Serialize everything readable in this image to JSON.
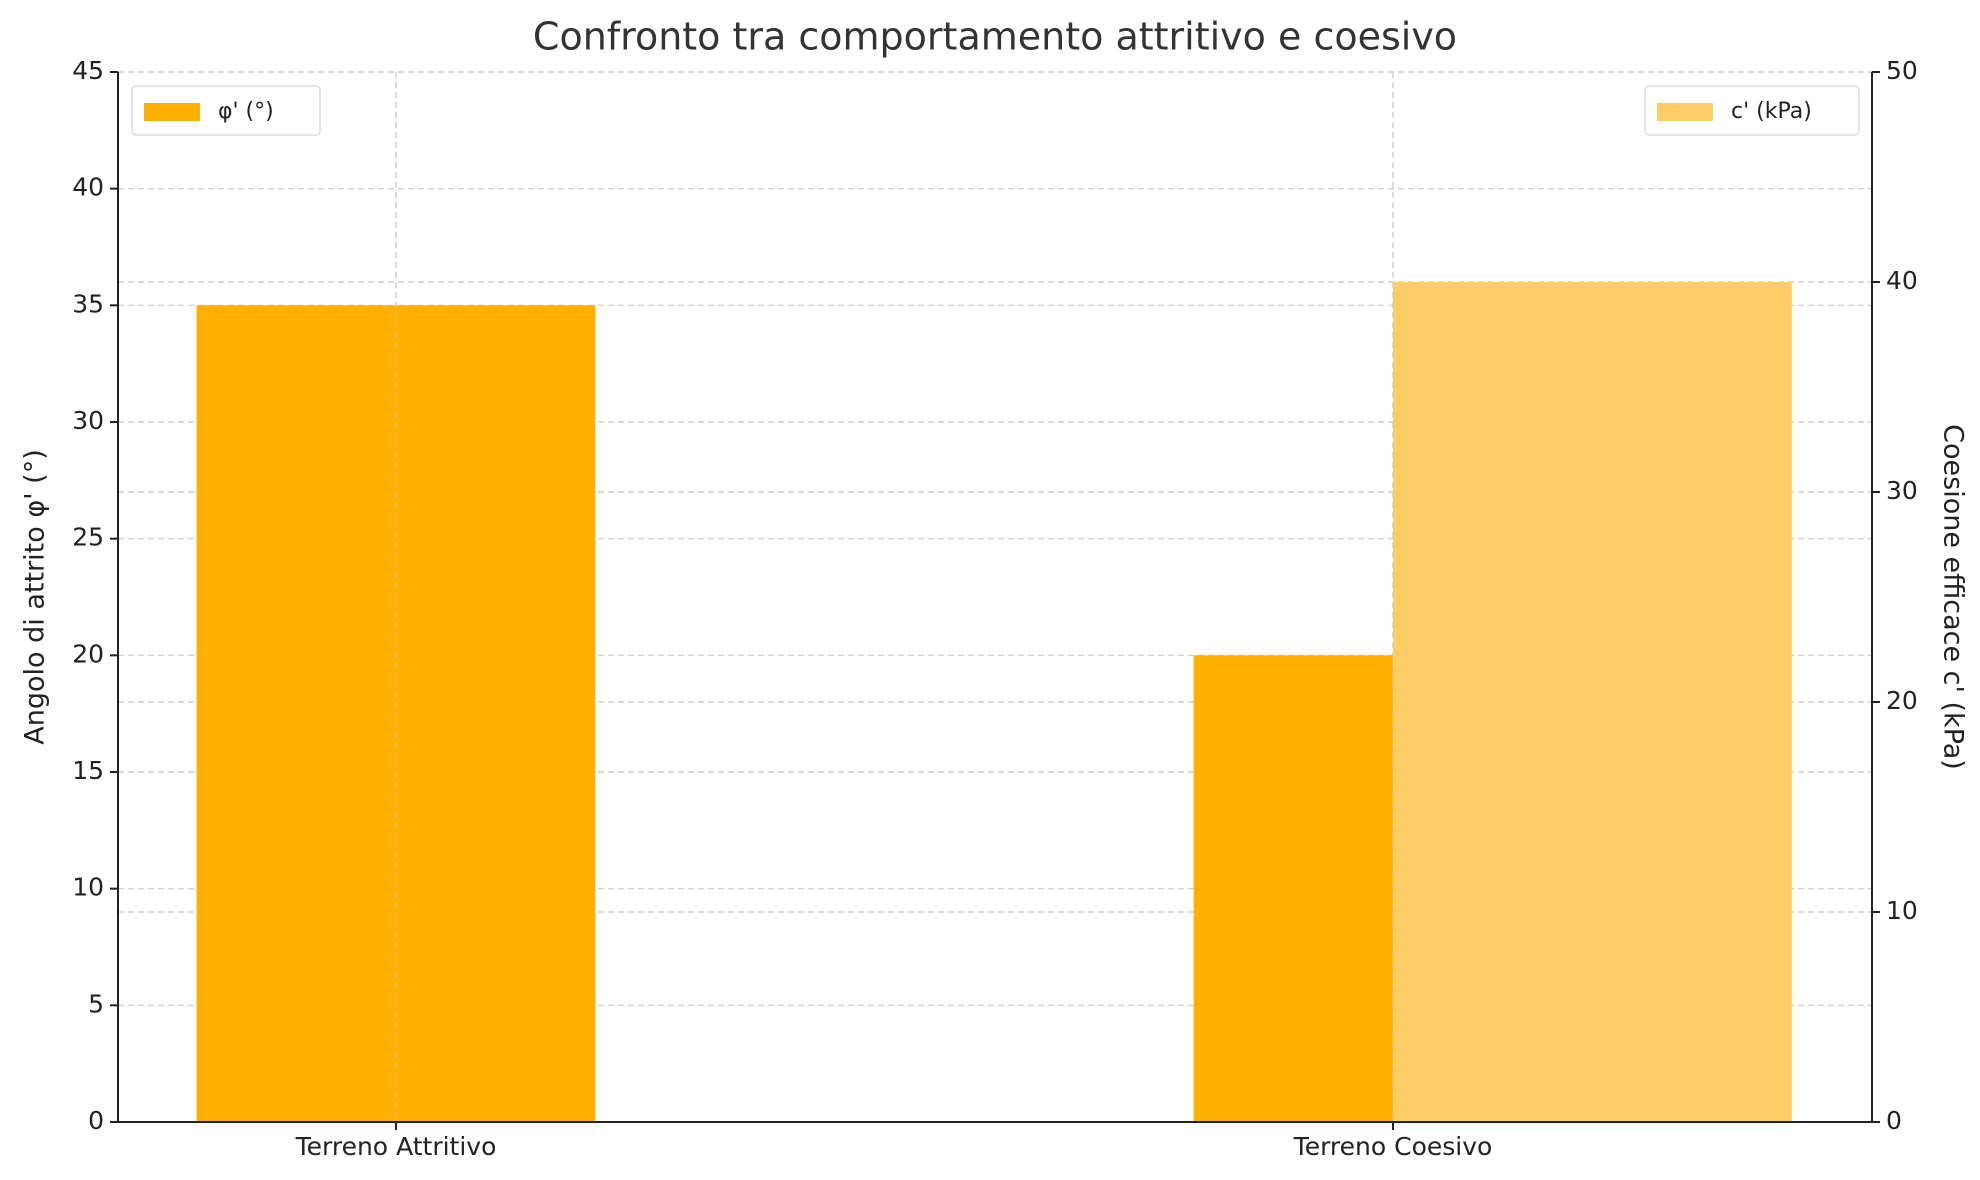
{
  "chart_data": {
    "type": "bar",
    "title": "Confronto tra comportamento attritivo e coesivo",
    "categories": [
      "Terreno Attritivo",
      "Terreno Coesivo"
    ],
    "series": [
      {
        "name": "φ' (°)",
        "color": "#ffb000",
        "values": [
          35,
          20
        ],
        "legend": "upper left"
      },
      {
        "name": "c' (kPa)",
        "color": "#ffcd66",
        "values": [
          0,
          40
        ],
        "axis": "y2",
        "legend": "upper right"
      }
    ],
    "ylabel": "Angolo di attrito φ' (°)",
    "y2label": "Coesione efficace c' (kPa)",
    "ylim": [
      0,
      45
    ],
    "yticks": [
      0,
      5,
      10,
      15,
      20,
      25,
      30,
      35,
      40,
      45
    ],
    "y2lim": [
      0,
      50
    ],
    "y2ticks": [
      0,
      10,
      20,
      30,
      40,
      50
    ],
    "grid": true
  }
}
